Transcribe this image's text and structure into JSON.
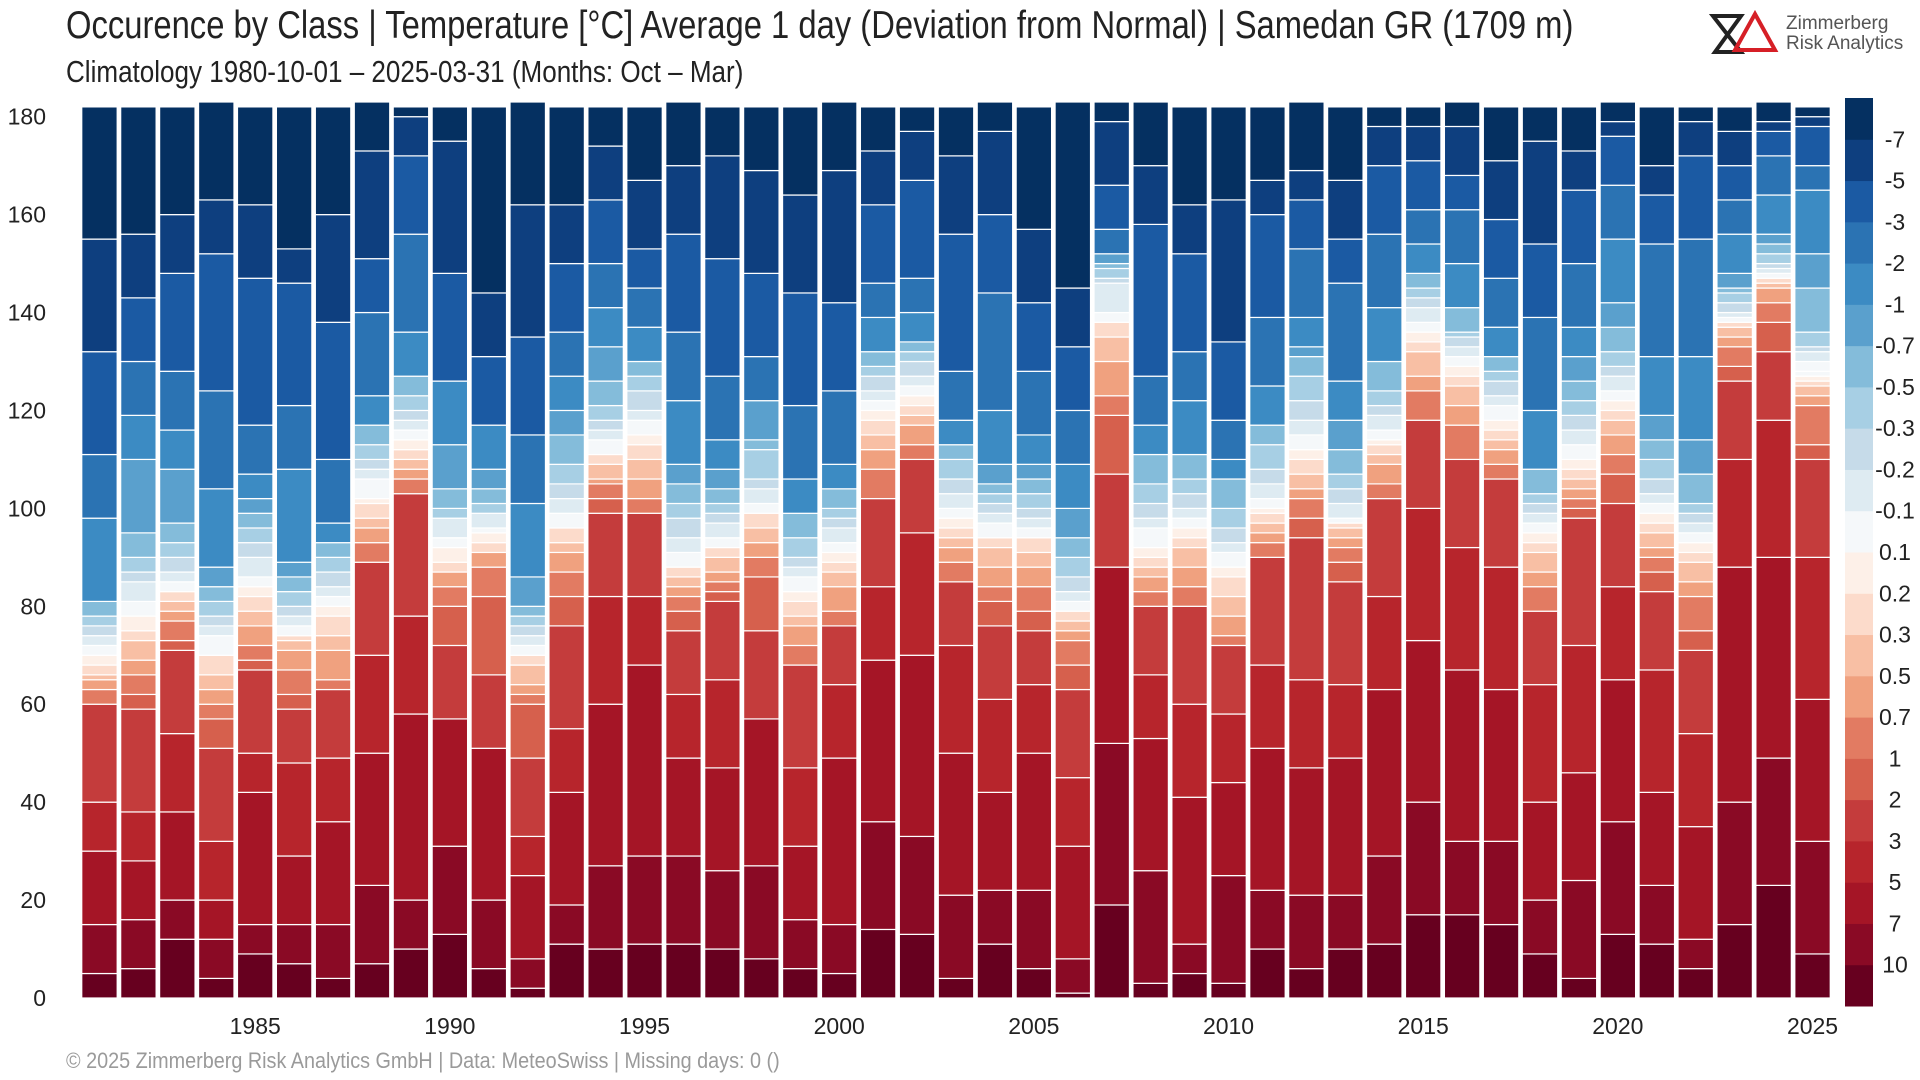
{
  "header": {
    "title": "Occurence by Class | Temperature [°C] Average 1 day (Deviation from Normal) | Samedan  GR (1709 m)",
    "subtitle": "Climatology 1980-10-01 – 2025-03-31 (Months: Oct – Mar)"
  },
  "logo": {
    "line1": "Zimmerberg",
    "line2": "Risk Analytics"
  },
  "footer": {
    "text": "©  2025 Zimmerberg Risk Analytics GmbH | Data: MeteoSwiss | Missing days: 0 ()"
  },
  "chart_data": {
    "type": "bar",
    "stacked": true,
    "x": [
      1981,
      1982,
      1983,
      1984,
      1985,
      1986,
      1987,
      1988,
      1989,
      1990,
      1991,
      1992,
      1993,
      1994,
      1995,
      1996,
      1997,
      1998,
      1999,
      2000,
      2001,
      2002,
      2003,
      2004,
      2005,
      2006,
      2007,
      2008,
      2009,
      2010,
      2011,
      2012,
      2013,
      2014,
      2015,
      2016,
      2017,
      2018,
      2019,
      2020,
      2021,
      2022,
      2023,
      2024,
      2025
    ],
    "x_ticks": [
      1985,
      1990,
      1995,
      2000,
      2005,
      2010,
      2015,
      2020,
      2025
    ],
    "y_ticks": [
      0,
      20,
      40,
      60,
      80,
      100,
      120,
      140,
      160,
      180
    ],
    "ylim": [
      0,
      183
    ],
    "grid": false,
    "legend_placement": "right (colorbar)",
    "classes": [
      "10",
      "7",
      "5",
      "3",
      "2",
      "1",
      "0.7",
      "0.5",
      "0.3",
      "0.2",
      "0.1",
      "-0.1",
      "-0.2",
      "-0.3",
      "-0.5",
      "-0.7",
      "-1",
      "-2",
      "-3",
      "-5",
      "-7"
    ],
    "colors": [
      "#67001f",
      "#8a0a25",
      "#a51526",
      "#b7252c",
      "#c43c3c",
      "#d6604d",
      "#e27b62",
      "#f0a17f",
      "#f8bfa4",
      "#fcdbcb",
      "#fdf0e8",
      "#f5f8fa",
      "#deebf2",
      "#c6dbe9",
      "#a7cfe4",
      "#84bcda",
      "#5aa0cd",
      "#3c8bc3",
      "#2b73b3",
      "#1b5aa3",
      "#0e3f7f",
      "#053061"
    ],
    "boundaries": [
      [
        5,
        15,
        30,
        40,
        60,
        63,
        65,
        66,
        68,
        70,
        72,
        74,
        76,
        78,
        81,
        98,
        111,
        132,
        155,
        182
      ],
      [
        6,
        16,
        28,
        38,
        59,
        62,
        66,
        69,
        73,
        75,
        78,
        81,
        85,
        87,
        90,
        95,
        110,
        119,
        130,
        143,
        156,
        182
      ],
      [
        12,
        20,
        38,
        54,
        71,
        73,
        77,
        79,
        81,
        83,
        85,
        87,
        90,
        93,
        97,
        108,
        116,
        128,
        148,
        160,
        182
      ],
      [
        4,
        12,
        20,
        32,
        51,
        57,
        60,
        63,
        66,
        70,
        74,
        76,
        78,
        81,
        84,
        88,
        104,
        124,
        152,
        163,
        183
      ],
      [
        9,
        15,
        42,
        50,
        67,
        69,
        72,
        76,
        79,
        82,
        84,
        86,
        90,
        93,
        96,
        99,
        102,
        107,
        117,
        147,
        162,
        182
      ],
      [
        7,
        15,
        29,
        48,
        59,
        62,
        67,
        71,
        73,
        74,
        76,
        78,
        80,
        83,
        86,
        89,
        108,
        121,
        146,
        153,
        182
      ],
      [
        4,
        15,
        36,
        49,
        63,
        65,
        71,
        74,
        78,
        80,
        82,
        84,
        87,
        90,
        93,
        97,
        110,
        138,
        160,
        182
      ],
      [
        7,
        23,
        50,
        70,
        89,
        93,
        96,
        98,
        101,
        102,
        106,
        108,
        110,
        113,
        117,
        123,
        140,
        151,
        173,
        183
      ],
      [
        10,
        20,
        58,
        78,
        103,
        106,
        108,
        110,
        112,
        114,
        116,
        118,
        120,
        123,
        127,
        136,
        156,
        172,
        180,
        182
      ],
      [
        13,
        31,
        57,
        72,
        80,
        84,
        87,
        89,
        92,
        94,
        98,
        100,
        104,
        113,
        126,
        148,
        175,
        182
      ],
      [
        6,
        20,
        51,
        66,
        82,
        88,
        91,
        93,
        95,
        96,
        99,
        101,
        104,
        108,
        117,
        131,
        144,
        182
      ],
      [
        2,
        8,
        25,
        33,
        49,
        60,
        62,
        64,
        68,
        70,
        72,
        74,
        76,
        78,
        80,
        86,
        101,
        115,
        135,
        162,
        183
      ],
      [
        11,
        19,
        42,
        55,
        76,
        82,
        87,
        91,
        93,
        96,
        99,
        102,
        105,
        109,
        115,
        120,
        127,
        136,
        150,
        162,
        182
      ],
      [
        10,
        27,
        60,
        82,
        99,
        102,
        105,
        106,
        109,
        111,
        114,
        116,
        118,
        121,
        126,
        133,
        141,
        150,
        163,
        174,
        182
      ],
      [
        11,
        29,
        68,
        82,
        99,
        102,
        106,
        110,
        113,
        115,
        118,
        120,
        124,
        127,
        130,
        137,
        145,
        153,
        167,
        182
      ],
      [
        11,
        29,
        49,
        62,
        75,
        79,
        82,
        84,
        86,
        88,
        91,
        94,
        98,
        101,
        105,
        109,
        122,
        136,
        156,
        170,
        183
      ],
      [
        10,
        26,
        47,
        65,
        81,
        83,
        85,
        87,
        90,
        92,
        94,
        97,
        99,
        101,
        104,
        108,
        114,
        127,
        151,
        172,
        182
      ],
      [
        8,
        27,
        57,
        75,
        86,
        90,
        93,
        96,
        99,
        101,
        104,
        106,
        112,
        114,
        122,
        131,
        148,
        169,
        182
      ],
      [
        6,
        16,
        31,
        47,
        68,
        72,
        76,
        78,
        81,
        83,
        86,
        88,
        90,
        94,
        99,
        106,
        121,
        144,
        164,
        182
      ],
      [
        5,
        15,
        49,
        64,
        76,
        79,
        84,
        87,
        89,
        91,
        93,
        96,
        98,
        100,
        104,
        109,
        124,
        142,
        169,
        183
      ],
      [
        14,
        36,
        69,
        84,
        102,
        108,
        112,
        115,
        118,
        120,
        122,
        124,
        127,
        129,
        132,
        139,
        146,
        162,
        173,
        182
      ],
      [
        13,
        33,
        70,
        95,
        110,
        113,
        117,
        119,
        121,
        123,
        125,
        127,
        130,
        132,
        134,
        140,
        147,
        167,
        177,
        182
      ],
      [
        4,
        21,
        50,
        72,
        85,
        89,
        92,
        94,
        96,
        98,
        100,
        103,
        106,
        110,
        113,
        118,
        128,
        156,
        172,
        182
      ],
      [
        11,
        22,
        42,
        61,
        76,
        81,
        84,
        88,
        92,
        94,
        97,
        99,
        101,
        103,
        105,
        109,
        120,
        144,
        160,
        177,
        183
      ],
      [
        6,
        22,
        50,
        64,
        75,
        79,
        84,
        88,
        91,
        94,
        96,
        98,
        100,
        103,
        106,
        109,
        115,
        128,
        142,
        157,
        182
      ],
      [
        1,
        8,
        31,
        45,
        63,
        68,
        73,
        75,
        77,
        79,
        81,
        83,
        86,
        90,
        94,
        100,
        109,
        120,
        133,
        145,
        183
      ],
      [
        19,
        52,
        88,
        107,
        119,
        123,
        130,
        135,
        138,
        140,
        146,
        147,
        149,
        150,
        152,
        157,
        166,
        179,
        183
      ],
      [
        3,
        26,
        53,
        66,
        80,
        83,
        86,
        88,
        90,
        92,
        96,
        98,
        101,
        105,
        111,
        117,
        127,
        158,
        170,
        183
      ],
      [
        5,
        11,
        41,
        60,
        80,
        84,
        88,
        92,
        94,
        96,
        98,
        100,
        103,
        106,
        111,
        122,
        132,
        152,
        162,
        182
      ],
      [
        3,
        25,
        44,
        58,
        72,
        74,
        78,
        82,
        86,
        88,
        91,
        93,
        96,
        100,
        106,
        110,
        118,
        134,
        163,
        182
      ],
      [
        10,
        22,
        51,
        68,
        90,
        93,
        95,
        97,
        99,
        100,
        102,
        105,
        108,
        113,
        117,
        125,
        139,
        160,
        167,
        182
      ],
      [
        6,
        21,
        47,
        65,
        94,
        98,
        102,
        104,
        107,
        110,
        112,
        115,
        118,
        122,
        127,
        131,
        133,
        139,
        153,
        163,
        169,
        183
      ],
      [
        10,
        21,
        49,
        64,
        85,
        89,
        92,
        94,
        96,
        97,
        98,
        101,
        104,
        107,
        112,
        118,
        126,
        146,
        155,
        167,
        182
      ],
      [
        11,
        29,
        63,
        82,
        102,
        105,
        109,
        111,
        113,
        114,
        116,
        119,
        121,
        124,
        130,
        141,
        156,
        170,
        178,
        182
      ],
      [
        17,
        40,
        73,
        100,
        118,
        124,
        127,
        132,
        134,
        136,
        138,
        141,
        143,
        145,
        148,
        154,
        161,
        171,
        178,
        182
      ],
      [
        17,
        32,
        67,
        92,
        110,
        117,
        121,
        125,
        127,
        129,
        131,
        133,
        135,
        136,
        141,
        150,
        161,
        168,
        178,
        183
      ],
      [
        15,
        32,
        63,
        88,
        106,
        109,
        112,
        114,
        116,
        118,
        121,
        123,
        126,
        128,
        131,
        137,
        147,
        159,
        171,
        182
      ],
      [
        9,
        20,
        40,
        64,
        79,
        84,
        87,
        91,
        93,
        95,
        97,
        99,
        101,
        103,
        108,
        120,
        139,
        154,
        175,
        182
      ],
      [
        4,
        24,
        46,
        72,
        98,
        100,
        102,
        104,
        106,
        108,
        110,
        113,
        116,
        119,
        122,
        126,
        131,
        137,
        150,
        165,
        173,
        182
      ],
      [
        13,
        36,
        65,
        84,
        101,
        107,
        111,
        115,
        118,
        120,
        122,
        124,
        127,
        129,
        132,
        137,
        142,
        155,
        166,
        176,
        179,
        183
      ],
      [
        11,
        23,
        42,
        67,
        83,
        87,
        90,
        92,
        95,
        97,
        99,
        101,
        103,
        106,
        110,
        114,
        119,
        131,
        154,
        164,
        170,
        182
      ],
      [
        6,
        12,
        35,
        54,
        71,
        75,
        82,
        85,
        89,
        91,
        93,
        95,
        97,
        99,
        101,
        107,
        114,
        131,
        155,
        172,
        179,
        182
      ],
      [
        15,
        40,
        88,
        110,
        126,
        129,
        133,
        135,
        137,
        138,
        139,
        140,
        142,
        144,
        145,
        148,
        156,
        163,
        170,
        177,
        182
      ],
      [
        23,
        49,
        90,
        118,
        132,
        138,
        142,
        145,
        146,
        147,
        148,
        149,
        150,
        152,
        154,
        156,
        164,
        172,
        177,
        179,
        183
      ],
      [
        9,
        32,
        61,
        90,
        110,
        113,
        121,
        123,
        125,
        126,
        127,
        128,
        130,
        132,
        133,
        136,
        145,
        152,
        165,
        170,
        178,
        180,
        182
      ]
    ]
  }
}
